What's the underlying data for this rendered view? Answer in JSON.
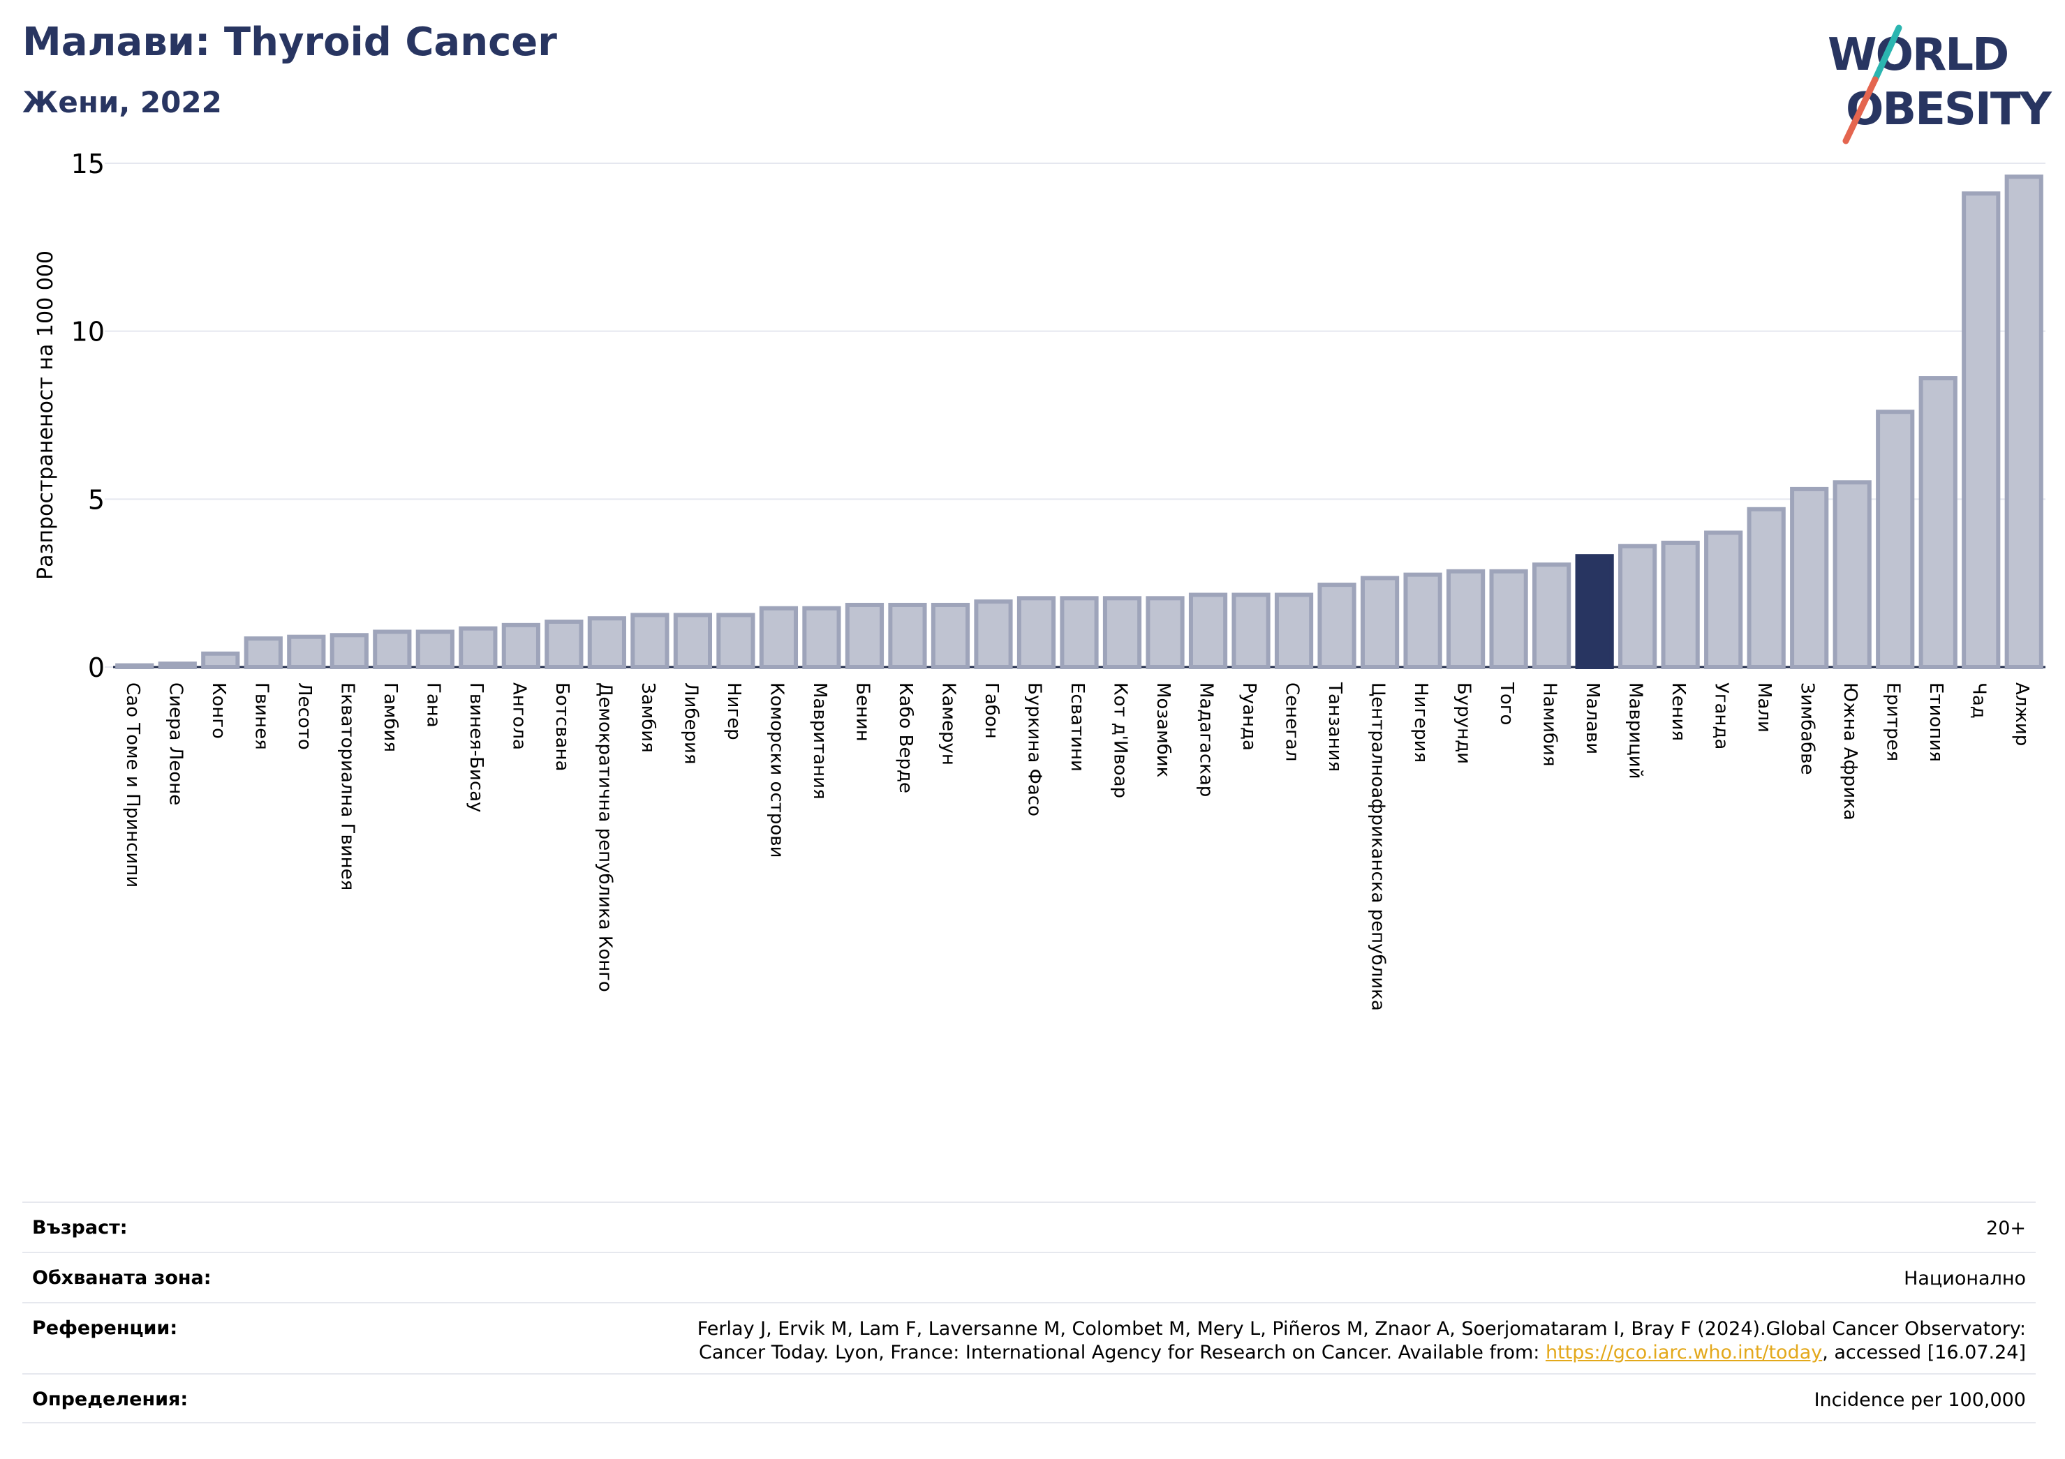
{
  "header": {
    "title": "Малави: Thyroid Cancer",
    "subtitle": "Жени, 2022"
  },
  "logo": {
    "line1": "WORLD",
    "line2": "OBESITY",
    "slash_colors": [
      "#2bb5b0",
      "#e4654f"
    ],
    "text_color": "#283561"
  },
  "colors": {
    "bar_fill": "#bfc3d1",
    "bar_stroke": "#9ea4ba",
    "highlight": "#283561",
    "grid": "#e5e7ef"
  },
  "chart_data": {
    "type": "bar",
    "ylabel": "Разпространеност  на 100 000",
    "ylim": [
      0,
      15
    ],
    "yticks": [
      0,
      5,
      10,
      15
    ],
    "grid": true,
    "highlight": "Малави",
    "categories": [
      "Сао Томе и Принсипи",
      "Сиера Леоне",
      "Конго",
      "Гвинея",
      "Лесото",
      "Екваториална Гвинея",
      "Гамбия",
      "Гана",
      "Гвинея-Бисау",
      "Ангола",
      "Ботсвана",
      "Демократична република Конго",
      "Замбия",
      "Либерия",
      "Нигер",
      "Коморски острови",
      "Мавритания",
      "Бенин",
      "Кабо Верде",
      "Камерун",
      "Габон",
      "Буркина Фасо",
      "Есватини",
      "Кот д'Ивоар",
      "Мозамбик",
      "Мадагаскар",
      "Руанда",
      "Сенегал",
      "Танзания",
      "Централноафриканска република",
      "Нигерия",
      "Бурунди",
      "Того",
      "Намибия",
      "Малави",
      "Мавриций",
      "Кения",
      "Уганда",
      "Мали",
      "Зимбабве",
      "Южна Африка",
      "Еритрея",
      "Етиопия",
      "Чад",
      "Алжир"
    ],
    "values": [
      0.05,
      0.1,
      0.4,
      0.85,
      0.9,
      0.95,
      1.05,
      1.05,
      1.15,
      1.25,
      1.35,
      1.45,
      1.55,
      1.55,
      1.55,
      1.75,
      1.75,
      1.85,
      1.85,
      1.85,
      1.95,
      2.05,
      2.05,
      2.05,
      2.05,
      2.15,
      2.15,
      2.15,
      2.45,
      2.65,
      2.75,
      2.85,
      2.85,
      3.05,
      3.3,
      3.6,
      3.7,
      4.0,
      4.7,
      5.3,
      5.5,
      7.6,
      8.6,
      14.1,
      14.6
    ]
  },
  "meta": {
    "age_label": "Възраст:",
    "age_value": "20+",
    "area_label": "Обхваната зона:",
    "area_value": "Национално",
    "ref_label": "Референции:",
    "ref_line1": "Ferlay J, Ervik M, Lam F, Laversanne M, Colombet M, Mery L, Piñeros M, Znaor A, Soerjomataram I, Bray F (2024).Global Cancer Observatory:",
    "ref_line2_pre": "Cancer Today. Lyon, France: International Agency for Research on Cancer. Available from: ",
    "ref_link": "https://gco.iarc.who.int/today",
    "ref_line2_post": ", accessed [16.07.24]",
    "def_label": "Определения:",
    "def_value": "Incidence per 100,000"
  }
}
